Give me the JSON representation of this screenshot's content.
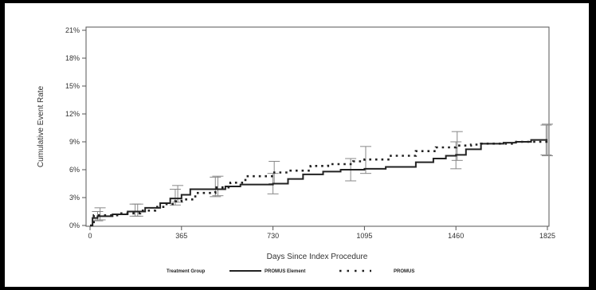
{
  "chart_data": {
    "type": "line",
    "title": "",
    "xlabel": "Days Since Index Procedure",
    "ylabel": "Cumulative Event Rate",
    "xlim": [
      0,
      1825
    ],
    "ylim": [
      0,
      21
    ],
    "x_ticks": [
      0,
      365,
      730,
      1095,
      1460,
      1825
    ],
    "x_tick_labels": [
      "0",
      "365",
      "730",
      "1095",
      "1460",
      "1825"
    ],
    "y_ticks": [
      0,
      3,
      6,
      9,
      12,
      15,
      18,
      21
    ],
    "y_tick_labels": [
      "0%",
      "3%",
      "6%",
      "9%",
      "12%",
      "15%",
      "18%",
      "21%"
    ],
    "grid": false,
    "legend_title": "Treatment Group",
    "legend_position": "bottom",
    "series": [
      {
        "name": "PROMUS Element",
        "style": "solid",
        "color": "#222222",
        "points": [
          [
            0,
            0
          ],
          [
            10,
            0.8
          ],
          [
            30,
            1.0
          ],
          [
            90,
            1.2
          ],
          [
            150,
            1.5
          ],
          [
            220,
            1.9
          ],
          [
            280,
            2.4
          ],
          [
            320,
            2.9
          ],
          [
            365,
            3.3
          ],
          [
            400,
            3.9
          ],
          [
            460,
            3.9
          ],
          [
            540,
            4.2
          ],
          [
            600,
            4.4
          ],
          [
            730,
            4.5
          ],
          [
            790,
            5.0
          ],
          [
            850,
            5.5
          ],
          [
            930,
            5.8
          ],
          [
            1000,
            6.0
          ],
          [
            1095,
            6.1
          ],
          [
            1180,
            6.3
          ],
          [
            1300,
            6.8
          ],
          [
            1370,
            7.2
          ],
          [
            1420,
            7.5
          ],
          [
            1460,
            7.6
          ],
          [
            1500,
            8.2
          ],
          [
            1560,
            8.8
          ],
          [
            1650,
            8.9
          ],
          [
            1700,
            9.0
          ],
          [
            1760,
            9.2
          ],
          [
            1825,
            9.2
          ]
        ],
        "error_bars": [
          {
            "x": 30,
            "y": 1.0,
            "low": 0.5,
            "high": 1.5
          },
          {
            "x": 180,
            "y": 1.6,
            "low": 1.0,
            "high": 2.3
          },
          {
            "x": 340,
            "y": 3.1,
            "low": 2.2,
            "high": 3.9
          },
          {
            "x": 500,
            "y": 4.1,
            "low": 3.1,
            "high": 5.2
          },
          {
            "x": 730,
            "y": 4.5,
            "low": 3.4,
            "high": 5.6
          },
          {
            "x": 1040,
            "y": 6.0,
            "low": 4.8,
            "high": 7.2
          },
          {
            "x": 1460,
            "y": 7.6,
            "low": 6.1,
            "high": 9.0
          },
          {
            "x": 1820,
            "y": 9.2,
            "low": 7.6,
            "high": 10.8
          }
        ]
      },
      {
        "name": "PROMUS",
        "style": "dotted",
        "color": "#222222",
        "points": [
          [
            0,
            0
          ],
          [
            15,
            1.1
          ],
          [
            60,
            1.1
          ],
          [
            120,
            1.3
          ],
          [
            200,
            1.6
          ],
          [
            260,
            2.0
          ],
          [
            300,
            2.3
          ],
          [
            340,
            2.6
          ],
          [
            365,
            2.8
          ],
          [
            420,
            3.5
          ],
          [
            500,
            4.1
          ],
          [
            560,
            4.6
          ],
          [
            620,
            5.3
          ],
          [
            730,
            5.7
          ],
          [
            800,
            5.9
          ],
          [
            880,
            6.4
          ],
          [
            950,
            6.6
          ],
          [
            1050,
            6.9
          ],
          [
            1095,
            7.1
          ],
          [
            1200,
            7.5
          ],
          [
            1300,
            8.0
          ],
          [
            1380,
            8.4
          ],
          [
            1460,
            8.6
          ],
          [
            1520,
            8.7
          ],
          [
            1560,
            8.8
          ],
          [
            1650,
            8.8
          ],
          [
            1700,
            9.0
          ],
          [
            1825,
            9.1
          ]
        ],
        "error_bars": [
          {
            "x": 40,
            "y": 1.2,
            "low": 0.6,
            "high": 1.9
          },
          {
            "x": 190,
            "y": 1.6,
            "low": 1.0,
            "high": 2.3
          },
          {
            "x": 350,
            "y": 3.3,
            "low": 2.5,
            "high": 4.3
          },
          {
            "x": 510,
            "y": 4.3,
            "low": 3.2,
            "high": 5.3
          },
          {
            "x": 735,
            "y": 5.7,
            "low": 4.5,
            "high": 6.9
          },
          {
            "x": 1100,
            "y": 7.1,
            "low": 5.6,
            "high": 8.5
          },
          {
            "x": 1465,
            "y": 8.6,
            "low": 7.0,
            "high": 10.1
          },
          {
            "x": 1825,
            "y": 9.2,
            "low": 7.5,
            "high": 10.9
          }
        ]
      }
    ]
  }
}
